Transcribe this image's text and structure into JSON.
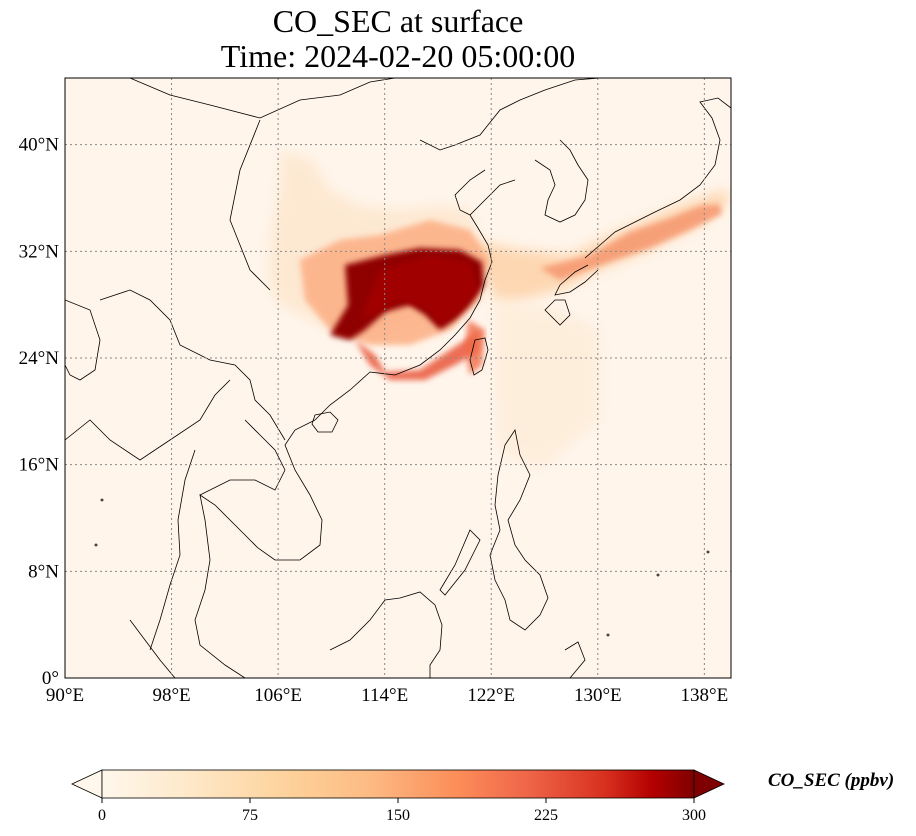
{
  "title": {
    "line1": "CO_SEC at surface",
    "line2": "Time: 2024-02-20 05:00:00"
  },
  "map": {
    "projection": "PlateCarree",
    "extent": {
      "lon": [
        90,
        140
      ],
      "lat": [
        0,
        45
      ]
    },
    "gridlines": "dotted gray",
    "lon_ticks": [
      {
        "value": 90,
        "label": "90°E"
      },
      {
        "value": 98,
        "label": "98°E"
      },
      {
        "value": 106,
        "label": "106°E"
      },
      {
        "value": 114,
        "label": "114°E"
      },
      {
        "value": 122,
        "label": "122°E"
      },
      {
        "value": 130,
        "label": "130°E"
      },
      {
        "value": 138,
        "label": "138°E"
      }
    ],
    "lat_ticks": [
      {
        "value": 0,
        "label": "0°"
      },
      {
        "value": 8,
        "label": "8°N"
      },
      {
        "value": 16,
        "label": "16°N"
      },
      {
        "value": 24,
        "label": "24°N"
      },
      {
        "value": 32,
        "label": "32°N"
      },
      {
        "value": 40,
        "label": "40°N"
      }
    ],
    "background_color": "#fff5eb",
    "coastline_color": "#000000"
  },
  "colorbar": {
    "label": "CO_SEC (ppbv)",
    "cmap": "OrRd",
    "min": 0,
    "max": 300,
    "extend": "both",
    "ticks": [
      {
        "value": 0,
        "label": "0"
      },
      {
        "value": 75,
        "label": "75"
      },
      {
        "value": 150,
        "label": "150"
      },
      {
        "value": 225,
        "label": "225"
      },
      {
        "value": 300,
        "label": "300"
      }
    ]
  }
}
